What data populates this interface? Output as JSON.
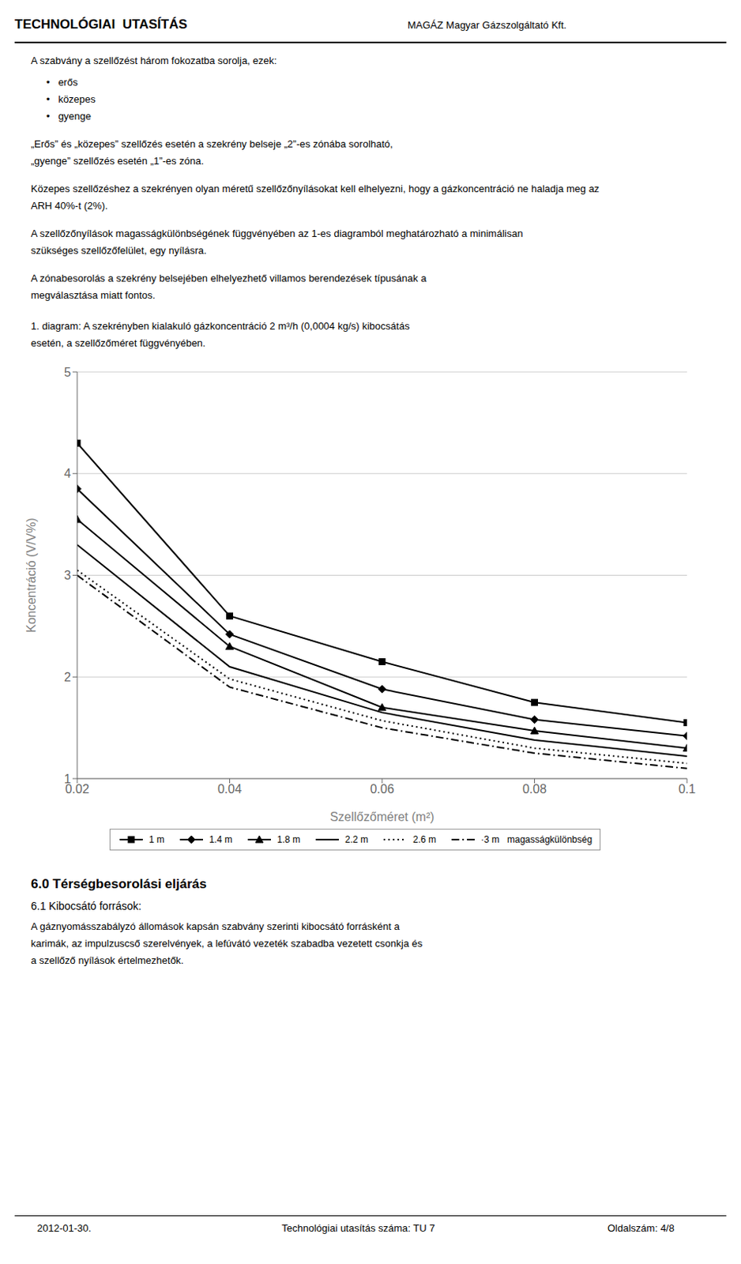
{
  "chart_data": {
    "type": "line",
    "xlabel": "Szellőzőméret (m²)",
    "ylabel": "Koncentráció (V/V%)",
    "xlim": [
      0.02,
      0.1
    ],
    "ylim": [
      1,
      5
    ],
    "xticks": [
      0.02,
      0.04,
      0.06,
      0.08,
      0.1
    ],
    "yticks": [
      1,
      2,
      3,
      4,
      5
    ],
    "grid": "y",
    "legend": "bottom",
    "x": [
      0.02,
      0.04,
      0.06,
      0.08,
      0.1
    ],
    "series": [
      {
        "color": "#aaaaaa",
        "line_style": "solid",
        "values": [
          4.3,
          2.6,
          2.15,
          1.75,
          1.55
        ]
      },
      {
        "name": "1 m",
        "color": "#000000",
        "marker": "square",
        "line_style": "solid",
        "values": [
          4.3,
          2.6,
          2.15,
          1.75,
          1.55
        ]
      },
      {
        "name": "1.4 m",
        "color": "#000000",
        "marker": "diamond",
        "line_style": "solid",
        "values": [
          3.85,
          2.42,
          1.88,
          1.58,
          1.42
        ]
      },
      {
        "name": "1.8 m",
        "color": "#000000",
        "marker": "triangle",
        "line_style": "solid",
        "values": [
          3.55,
          2.3,
          1.7,
          1.47,
          1.3
        ]
      },
      {
        "name": "2.2 m",
        "color": "#000000",
        "line_style": "solid",
        "values": [
          3.3,
          2.1,
          1.65,
          1.38,
          1.22
        ]
      },
      {
        "name": "2.6 m",
        "color": "#000000",
        "line_style": "dotted",
        "values": [
          3.05,
          1.98,
          1.57,
          1.3,
          1.15
        ]
      },
      {
        "name": "·3 m   magasságkülönbség",
        "color": "#000000",
        "line_style": "dashdot",
        "values": [
          3.0,
          1.9,
          1.5,
          1.25,
          1.1
        ]
      }
    ],
    "annotations": [
      "TECHNOLÓGIAI  UTASÍTÁS",
      "MAGÁZ Magyar Gázszolgáltató Kft.",
      "A szabvány a szellőzést három fokozatba sorolja, ezek:",
      "•   erős",
      "•   közepes",
      "•   gyenge",
      "„Erős” és „közepes” szellőzés esetén a szekrény belseje „2”-es zónába sorolható,",
      "„gyenge” szellőzés esetén „1”-es zóna.",
      "Közepes szellőzéshez a szekrényen olyan méretű szellőzőnyílásokat kell elhelyezni, hogy a gázkoncentráció ne haladja meg az",
      "ARH 40%-t (2%).",
      "A szellőzőnyílások magasságkülönbségének függvényében az 1-es diagramból meghatározható a minimálisan",
      "szükséges szellőzőfelület, egy nyílásra.",
      "A zónabesorolás a szekrény belsejében elhelyezhető villamos berendezések típusának a",
      "megválasztása miatt fontos.",
      "1. diagram: A szekrényben kialakuló gázkoncentráció 2 m³/h (0,0004 kg/s) kibocsátás",
      "esetén, a szellőzőméret függvényében.",
      "6.0 Térségbesorolási eljárás",
      "6.1 Kibocsátó források:",
      "A gáznyomásszabályzó állomások kapsán szabvány szerinti kibocsátó forrásként a",
      "karimák, az impulzuscső szerelvények, a lefúvátó vezeték szabadba vezetett csonkja és",
      "a szellőző nyílások értelmezhetők.",
      "2012-01-30.",
      "Technológiai utasítás száma: TU 7",
      "Oldalszám: 4/8"
    ]
  }
}
